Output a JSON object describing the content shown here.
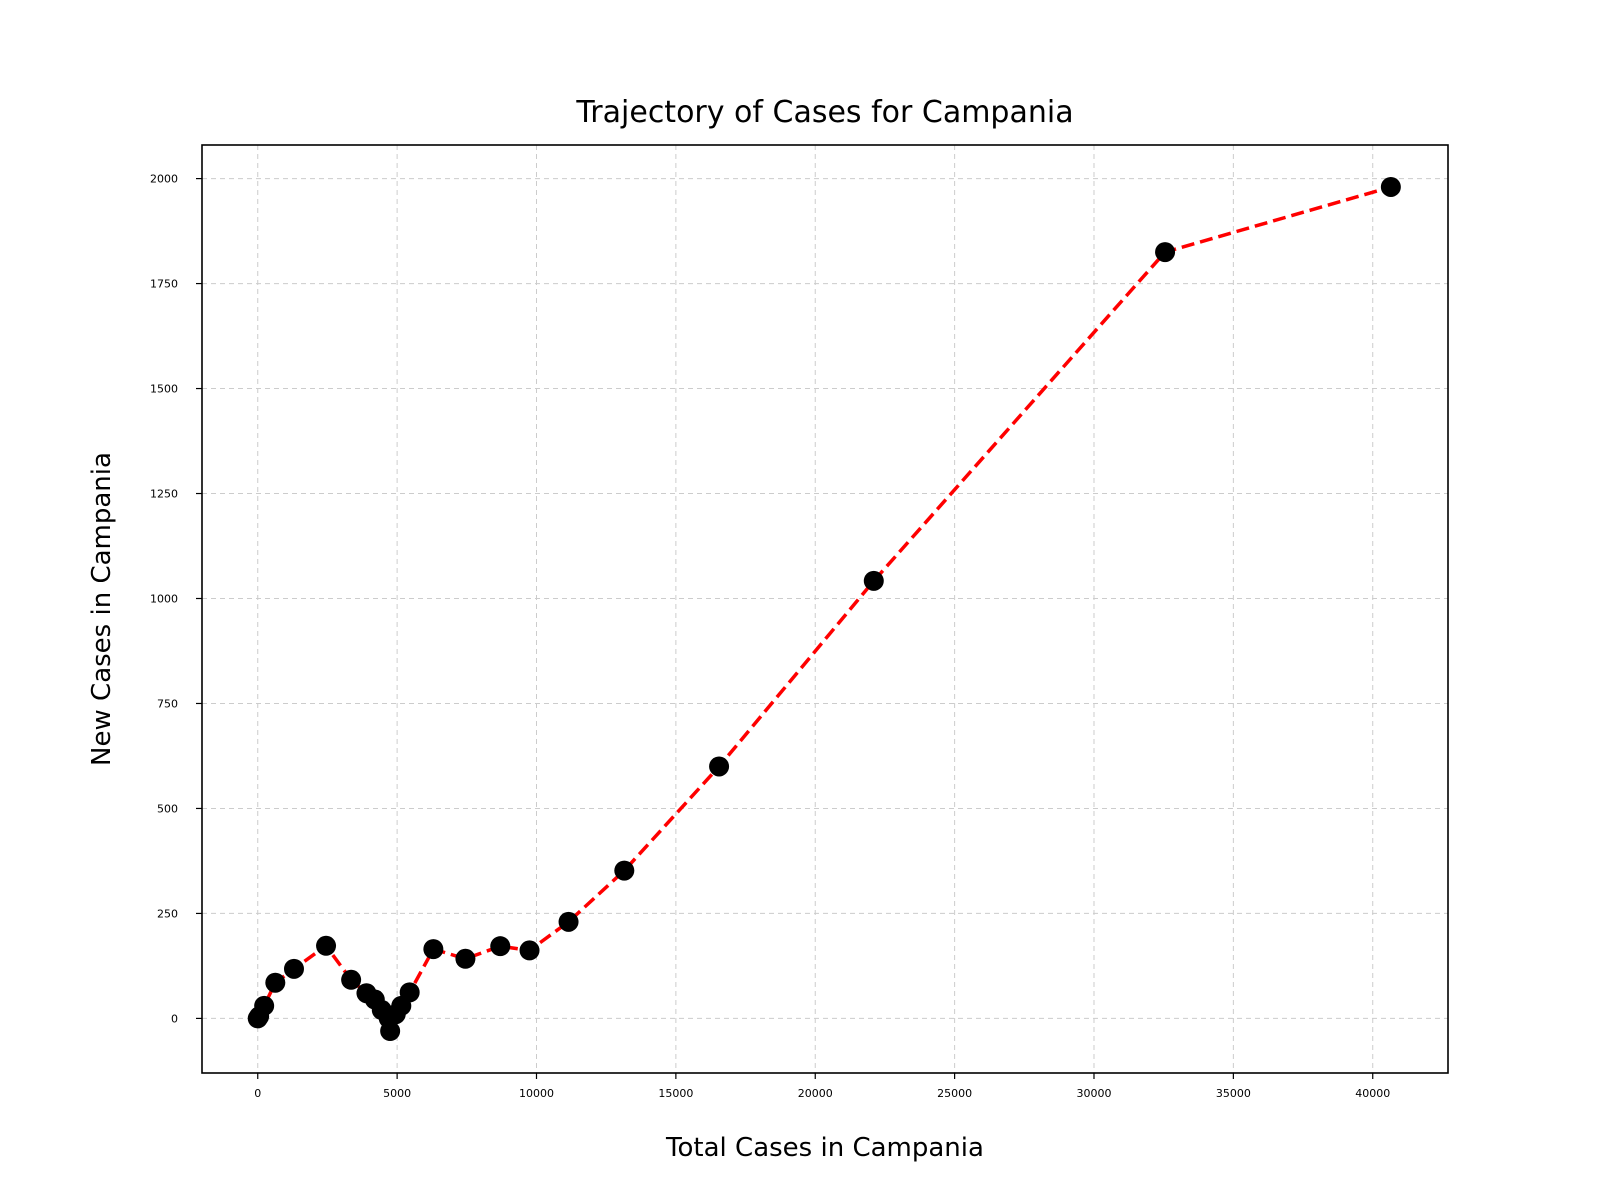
{
  "chart_data": {
    "type": "line",
    "title": "Trajectory of Cases for Campania",
    "xlabel": "Total Cases in Campania",
    "ylabel": "New Cases in Campania",
    "xlim": [
      -2000,
      42700
    ],
    "ylim": [
      -130,
      2080
    ],
    "xticks": [
      0,
      5000,
      10000,
      15000,
      20000,
      25000,
      30000,
      35000,
      40000
    ],
    "yticks": [
      0,
      250,
      500,
      750,
      1000,
      1250,
      1500,
      1750,
      2000
    ],
    "grid": true,
    "line_color": "#ff0000",
    "marker_color": "#000000",
    "series": [
      {
        "x": [
          0,
          50,
          230,
          630,
          1300,
          2450,
          3350,
          3900,
          4200,
          4450,
          4700,
          4750,
          4950,
          5150,
          5450,
          6300,
          7450,
          8700,
          9750,
          11150,
          13150,
          16550,
          22100,
          32550,
          40650
        ],
        "y": [
          0,
          5,
          30,
          85,
          118,
          173,
          92,
          60,
          45,
          20,
          0,
          -30,
          10,
          30,
          62,
          165,
          142,
          172,
          162,
          230,
          352,
          600,
          1042,
          1825,
          1980
        ]
      }
    ]
  }
}
